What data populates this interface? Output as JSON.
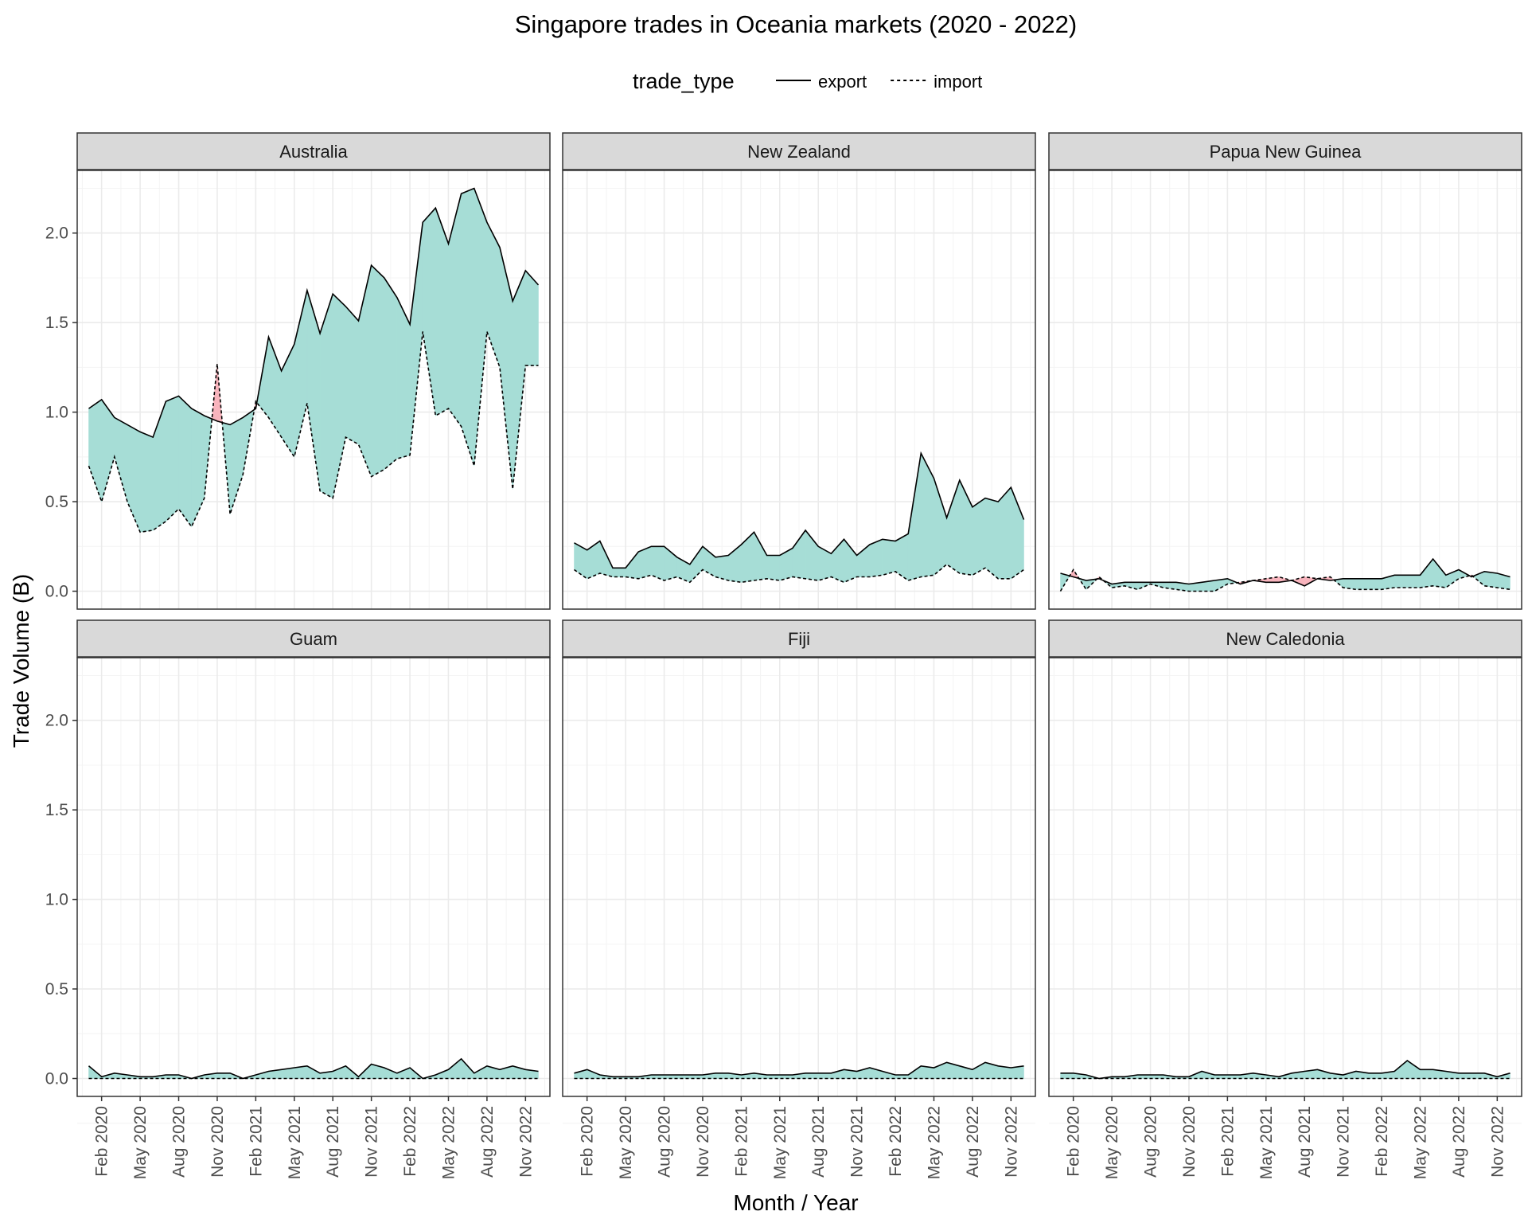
{
  "chart_data": {
    "type": "area",
    "title": "Singapore trades in Oceania markets (2020 - 2022)",
    "xlabel": "Month / Year",
    "ylabel": "Trade Volume (B)",
    "legend": {
      "title": "trade_type",
      "position": "top",
      "entries": [
        {
          "name": "export",
          "linetype": "solid"
        },
        {
          "name": "import",
          "linetype": "dashed"
        }
      ]
    },
    "ylim": [
      -0.1,
      2.35
    ],
    "y_ticks": [
      0.0,
      0.5,
      1.0,
      1.5,
      2.0
    ],
    "y_tick_labels": [
      "0.0",
      "0.5",
      "1.0",
      "1.5",
      "2.0"
    ],
    "x_ticks": [
      "2020-02",
      "2020-05",
      "2020-08",
      "2020-11",
      "2021-02",
      "2021-05",
      "2021-08",
      "2021-11",
      "2022-02",
      "2022-05",
      "2022-08",
      "2022-11"
    ],
    "x_tick_labels": [
      "Feb 2020",
      "May 2020",
      "Aug 2020",
      "Nov 2020",
      "Feb 2021",
      "May 2021",
      "Aug 2021",
      "Nov 2021",
      "Feb 2022",
      "May 2022",
      "Aug 2022",
      "Nov 2022"
    ],
    "months": [
      "2020-01",
      "2020-02",
      "2020-03",
      "2020-04",
      "2020-05",
      "2020-06",
      "2020-07",
      "2020-08",
      "2020-09",
      "2020-10",
      "2020-11",
      "2020-12",
      "2021-01",
      "2021-02",
      "2021-03",
      "2021-04",
      "2021-05",
      "2021-06",
      "2021-07",
      "2021-08",
      "2021-09",
      "2021-10",
      "2021-11",
      "2021-12",
      "2022-01",
      "2022-02",
      "2022-03",
      "2022-04",
      "2022-05",
      "2022-06",
      "2022-07",
      "2022-08",
      "2022-09",
      "2022-10",
      "2022-11",
      "2022-12"
    ],
    "fill_colors": {
      "export_higher": "#a6ddd6",
      "import_higher": "#f8b4bd"
    },
    "grid": true,
    "layout": "facet 2x3",
    "panels": [
      {
        "name": "Australia",
        "export": [
          1.02,
          1.07,
          0.97,
          0.93,
          0.89,
          0.86,
          1.06,
          1.09,
          1.02,
          0.98,
          0.95,
          0.93,
          0.97,
          1.02,
          1.42,
          1.23,
          1.38,
          1.68,
          1.44,
          1.66,
          1.59,
          1.51,
          1.82,
          1.75,
          1.64,
          1.49,
          2.06,
          2.14,
          1.94,
          2.22,
          2.25,
          2.06,
          1.92,
          1.62,
          1.79,
          1.71
        ],
        "import": [
          0.7,
          0.5,
          0.75,
          0.5,
          0.33,
          0.34,
          0.39,
          0.46,
          0.36,
          0.52,
          1.27,
          0.43,
          0.65,
          1.06,
          0.97,
          0.86,
          0.75,
          1.05,
          0.56,
          0.52,
          0.86,
          0.82,
          0.64,
          0.68,
          0.74,
          0.76,
          1.45,
          0.98,
          1.02,
          0.92,
          0.7,
          1.45,
          1.25,
          0.57,
          1.26,
          1.26
        ]
      },
      {
        "name": "New Zealand",
        "export": [
          0.27,
          0.23,
          0.28,
          0.13,
          0.13,
          0.22,
          0.25,
          0.25,
          0.19,
          0.15,
          0.25,
          0.19,
          0.2,
          0.26,
          0.33,
          0.2,
          0.2,
          0.24,
          0.34,
          0.25,
          0.21,
          0.29,
          0.2,
          0.26,
          0.29,
          0.28,
          0.32,
          0.77,
          0.63,
          0.41,
          0.62,
          0.47,
          0.52,
          0.5,
          0.58,
          0.4
        ],
        "import": [
          0.12,
          0.07,
          0.1,
          0.08,
          0.08,
          0.07,
          0.09,
          0.06,
          0.08,
          0.05,
          0.12,
          0.08,
          0.06,
          0.05,
          0.06,
          0.07,
          0.06,
          0.08,
          0.07,
          0.06,
          0.08,
          0.05,
          0.08,
          0.08,
          0.09,
          0.11,
          0.06,
          0.08,
          0.09,
          0.15,
          0.1,
          0.09,
          0.13,
          0.07,
          0.07,
          0.12
        ]
      },
      {
        "name": "Papua New Guinea",
        "export": [
          0.1,
          0.08,
          0.06,
          0.07,
          0.04,
          0.05,
          0.05,
          0.05,
          0.05,
          0.05,
          0.04,
          0.05,
          0.06,
          0.07,
          0.04,
          0.06,
          0.05,
          0.05,
          0.06,
          0.03,
          0.07,
          0.06,
          0.07,
          0.07,
          0.07,
          0.07,
          0.09,
          0.09,
          0.09,
          0.18,
          0.09,
          0.12,
          0.08,
          0.11,
          0.1,
          0.08
        ],
        "import": [
          0.0,
          0.12,
          0.01,
          0.08,
          0.02,
          0.03,
          0.01,
          0.04,
          0.02,
          0.01,
          0.0,
          0.0,
          0.0,
          0.04,
          0.05,
          0.06,
          0.07,
          0.08,
          0.06,
          0.08,
          0.07,
          0.08,
          0.02,
          0.01,
          0.01,
          0.01,
          0.02,
          0.02,
          0.02,
          0.03,
          0.02,
          0.07,
          0.09,
          0.03,
          0.02,
          0.01
        ]
      },
      {
        "name": "Guam",
        "export": [
          0.07,
          0.01,
          0.03,
          0.02,
          0.01,
          0.01,
          0.02,
          0.02,
          0.0,
          0.02,
          0.03,
          0.03,
          0.0,
          0.02,
          0.04,
          0.05,
          0.06,
          0.07,
          0.03,
          0.04,
          0.07,
          0.01,
          0.08,
          0.06,
          0.03,
          0.06,
          0.0,
          0.02,
          0.05,
          0.11,
          0.03,
          0.07,
          0.05,
          0.07,
          0.05,
          0.04
        ],
        "import": [
          0.0,
          0.0,
          0.0,
          0.0,
          0.0,
          0.0,
          0.0,
          0.0,
          0.0,
          0.0,
          0.0,
          0.0,
          0.0,
          0.0,
          0.0,
          0.0,
          0.0,
          0.0,
          0.0,
          0.0,
          0.0,
          0.0,
          0.0,
          0.0,
          0.0,
          0.0,
          0.0,
          0.0,
          0.0,
          0.0,
          0.0,
          0.0,
          0.0,
          0.0,
          0.0,
          0.0
        ]
      },
      {
        "name": "Fiji",
        "export": [
          0.03,
          0.05,
          0.02,
          0.01,
          0.01,
          0.01,
          0.02,
          0.02,
          0.02,
          0.02,
          0.02,
          0.03,
          0.03,
          0.02,
          0.03,
          0.02,
          0.02,
          0.02,
          0.03,
          0.03,
          0.03,
          0.05,
          0.04,
          0.06,
          0.04,
          0.02,
          0.02,
          0.07,
          0.06,
          0.09,
          0.07,
          0.05,
          0.09,
          0.07,
          0.06,
          0.07
        ],
        "import": [
          0.0,
          0.0,
          0.0,
          0.0,
          0.0,
          0.0,
          0.0,
          0.0,
          0.0,
          0.0,
          0.0,
          0.0,
          0.0,
          0.0,
          0.0,
          0.0,
          0.0,
          0.0,
          0.0,
          0.0,
          0.0,
          0.0,
          0.0,
          0.0,
          0.0,
          0.0,
          0.0,
          0.0,
          0.0,
          0.0,
          0.0,
          0.0,
          0.0,
          0.0,
          0.0,
          0.0
        ]
      },
      {
        "name": "New Caledonia",
        "export": [
          0.03,
          0.03,
          0.02,
          0.0,
          0.01,
          0.01,
          0.02,
          0.02,
          0.02,
          0.01,
          0.01,
          0.04,
          0.02,
          0.02,
          0.02,
          0.03,
          0.02,
          0.01,
          0.03,
          0.04,
          0.05,
          0.03,
          0.02,
          0.04,
          0.03,
          0.03,
          0.04,
          0.1,
          0.05,
          0.05,
          0.04,
          0.03,
          0.03,
          0.03,
          0.01,
          0.03
        ],
        "import": [
          0.0,
          0.0,
          0.0,
          0.0,
          0.0,
          0.0,
          0.0,
          0.0,
          0.0,
          0.0,
          0.0,
          0.0,
          0.0,
          0.0,
          0.0,
          0.0,
          0.0,
          0.0,
          0.0,
          0.0,
          0.0,
          0.0,
          0.0,
          0.0,
          0.0,
          0.0,
          0.0,
          0.0,
          0.0,
          0.0,
          0.0,
          0.0,
          0.0,
          0.0,
          0.0,
          0.0
        ]
      }
    ]
  }
}
